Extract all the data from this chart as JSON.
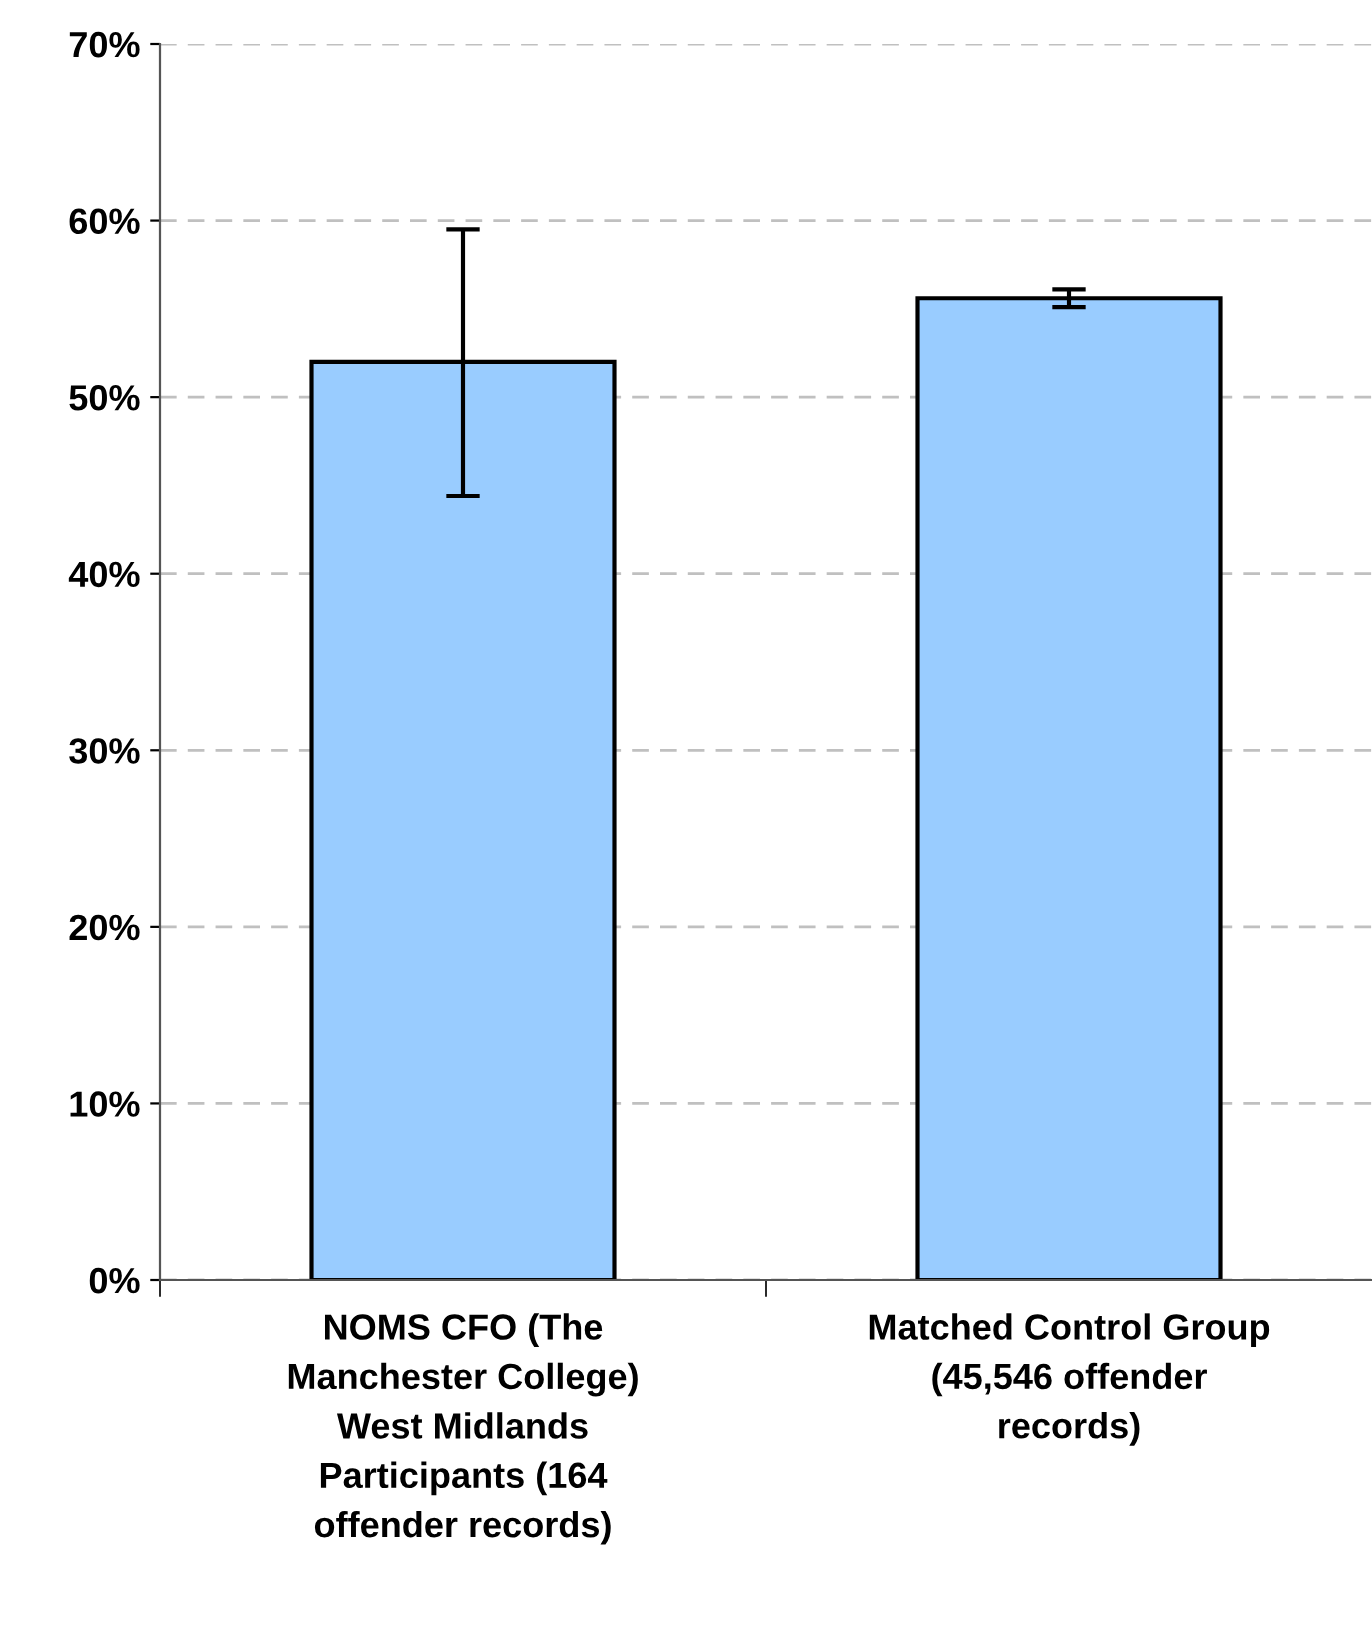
{
  "chart_data": {
    "type": "bar",
    "categories": [
      "NOMS CFO (The\nManchester College)\nWest Midlands\nParticipants (164\noffender records)",
      "Matched Control Group\n(45,546 offender\nrecords)"
    ],
    "values": [
      52.0,
      55.6
    ],
    "errors": [
      [
        44.4,
        59.5
      ],
      [
        55.1,
        56.1
      ]
    ],
    "color": "#99ccff",
    "ylim": [
      0,
      70
    ],
    "yticks": [
      {
        "value": 0,
        "label": "0%"
      },
      {
        "value": 10,
        "label": "10%"
      },
      {
        "value": 20,
        "label": "20%"
      },
      {
        "value": 30,
        "label": "30%"
      },
      {
        "value": 40,
        "label": "40%"
      },
      {
        "value": 50,
        "label": "50%"
      },
      {
        "value": 60,
        "label": "60%"
      },
      {
        "value": 70,
        "label": "70%"
      }
    ],
    "grid": "y"
  }
}
